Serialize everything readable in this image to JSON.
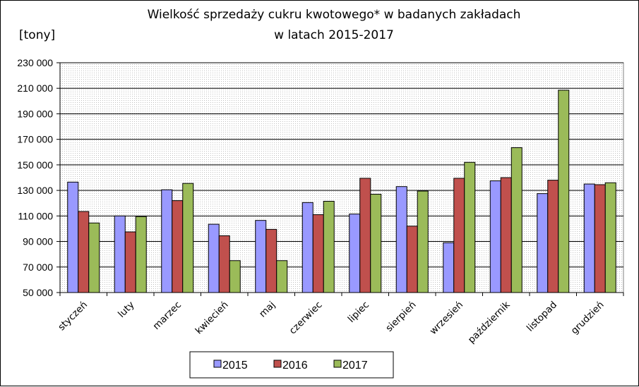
{
  "chart_data": {
    "type": "bar",
    "title_line1": "Wielkość sprzedaży cukru kwotowego* w badanych zakładach",
    "title_line2": "w latach 2015-2017",
    "ylabel": "[tony]",
    "ylim": [
      50000,
      230000
    ],
    "ytick_values": [
      50000,
      70000,
      90000,
      110000,
      130000,
      150000,
      170000,
      190000,
      210000,
      230000
    ],
    "ytick_labels": [
      "50 000",
      "70 000",
      "90 000",
      "110 000",
      "130 000",
      "150 000",
      "170 000",
      "190 000",
      "210 000",
      "230 000"
    ],
    "grid": true,
    "legend_position": "bottom-center",
    "categories": [
      "styczeń",
      "luty",
      "marzec",
      "kwiecień",
      "maj",
      "czerwiec",
      "lipiec",
      "sierpień",
      "wrzesień",
      "październik",
      "listopad",
      "grudzień"
    ],
    "series": [
      {
        "name": "2015",
        "color": "#9999ff",
        "values": [
          136500,
          110000,
          130500,
          103500,
          106500,
          120500,
          111500,
          133000,
          89000,
          137500,
          127500,
          135000
        ]
      },
      {
        "name": "2016",
        "color": "#c0504d",
        "values": [
          113500,
          97500,
          122000,
          94500,
          99500,
          111000,
          139500,
          102000,
          139500,
          140000,
          138000,
          134500
        ]
      },
      {
        "name": "2017",
        "color": "#9bbb59",
        "values": [
          104500,
          109500,
          135500,
          75000,
          75000,
          121500,
          127000,
          129500,
          152000,
          163500,
          208500,
          136000
        ]
      }
    ]
  }
}
